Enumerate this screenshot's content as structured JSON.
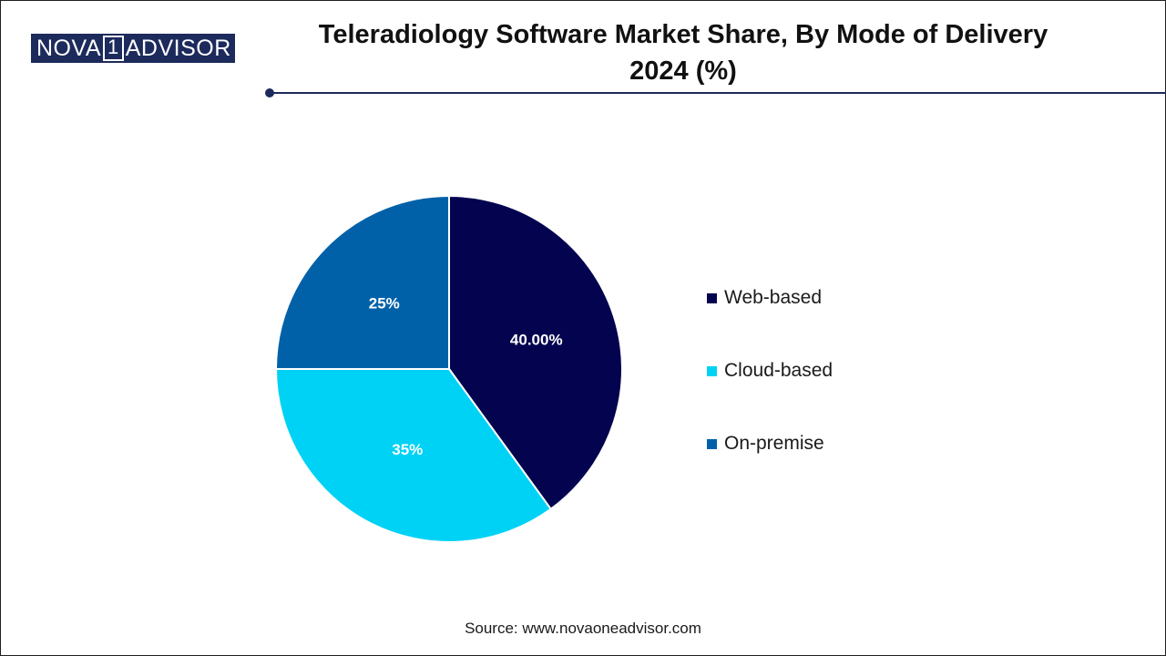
{
  "header": {
    "logo_left": "NOVA",
    "logo_one": "1",
    "logo_right": "ADVISOR",
    "title_line1": "Teleradiology Software Market Share, By Mode of Delivery",
    "title_line2": "2024 (%)",
    "accent": "#1d2a5c"
  },
  "chart_data": {
    "type": "pie",
    "title": "Teleradiology Software Market Share, By Mode of Delivery 2024 (%)",
    "legend_position": "right",
    "slices": [
      {
        "name": "Web-based",
        "value": 40,
        "label": "40.00%",
        "color": "#03034f"
      },
      {
        "name": "Cloud-based",
        "value": 35,
        "label": "35%",
        "color": "#00d2f5"
      },
      {
        "name": "On-premise",
        "value": 25,
        "label": "25%",
        "color": "#0061a8"
      }
    ]
  },
  "footer": {
    "source": "Source: www.novaoneadvisor.com"
  }
}
